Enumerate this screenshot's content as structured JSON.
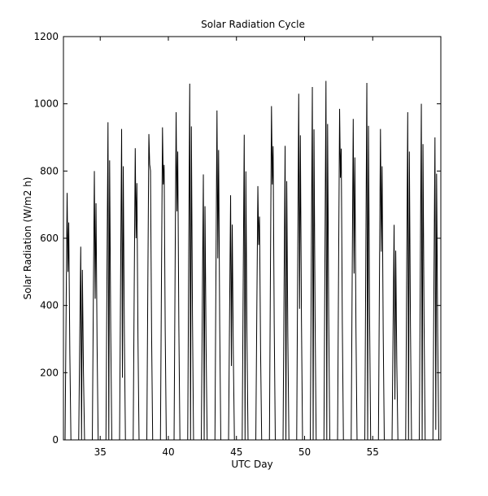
{
  "chart_data": {
    "type": "line",
    "title": "Solar Radiation Cycle",
    "xlabel": "UTC Day",
    "ylabel": "Solar Radiation (W/m2 h)",
    "xlim": [
      32.3,
      60.0
    ],
    "ylim": [
      0,
      1200
    ],
    "xticks": [
      35,
      40,
      45,
      50,
      55
    ],
    "yticks": [
      0,
      200,
      400,
      600,
      800,
      1000,
      1200
    ],
    "grid": false,
    "line_color": "#000000",
    "series": [
      {
        "daily_cycles": [
          {
            "day": 32,
            "peak": 735,
            "dip": 500
          },
          {
            "day": 33,
            "peak": 575,
            "dip": 0
          },
          {
            "day": 34,
            "peak": 800,
            "dip": 420
          },
          {
            "day": 35,
            "peak": 945,
            "dip": 0
          },
          {
            "day": 36,
            "peak": 925,
            "dip": 185
          },
          {
            "day": 37,
            "peak": 868,
            "dip": 600
          },
          {
            "day": 38,
            "peak": 910,
            "dip": 820
          },
          {
            "day": 39,
            "peak": 930,
            "dip": 760
          },
          {
            "day": 40,
            "peak": 975,
            "dip": 680
          },
          {
            "day": 41,
            "peak": 1060,
            "dip": 0
          },
          {
            "day": 42,
            "peak": 790,
            "dip": 0
          },
          {
            "day": 43,
            "peak": 980,
            "dip": 540
          },
          {
            "day": 44,
            "peak": 728,
            "dip": 220
          },
          {
            "day": 45,
            "peak": 908,
            "dip": 0
          },
          {
            "day": 46,
            "peak": 755,
            "dip": 580
          },
          {
            "day": 47,
            "peak": 993,
            "dip": 760
          },
          {
            "day": 48,
            "peak": 875,
            "dip": 0
          },
          {
            "day": 49,
            "peak": 1030,
            "dip": 390
          },
          {
            "day": 50,
            "peak": 1050,
            "dip": 0
          },
          {
            "day": 51,
            "peak": 1068,
            "dip": 0
          },
          {
            "day": 52,
            "peak": 985,
            "dip": 780
          },
          {
            "day": 53,
            "peak": 955,
            "dip": 495
          },
          {
            "day": 54,
            "peak": 1062,
            "dip": 0
          },
          {
            "day": 55,
            "peak": 925,
            "dip": 560
          },
          {
            "day": 56,
            "peak": 640,
            "dip": 120
          },
          {
            "day": 57,
            "peak": 975,
            "dip": 0
          },
          {
            "day": 58,
            "peak": 1000,
            "dip": 0
          },
          {
            "day": 59,
            "peak": 900,
            "dip": 30
          }
        ]
      }
    ]
  }
}
